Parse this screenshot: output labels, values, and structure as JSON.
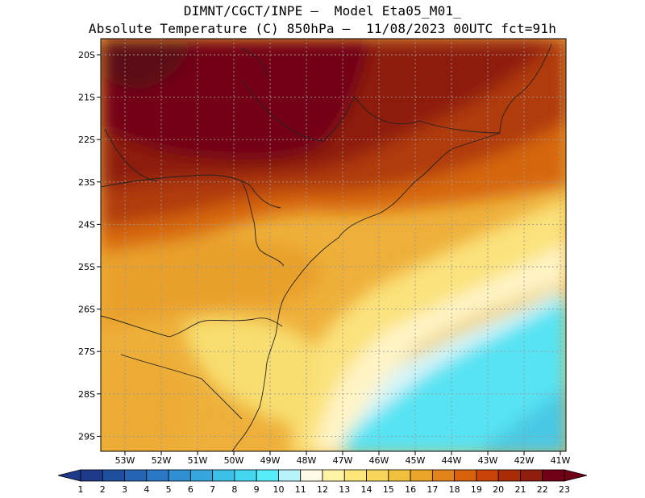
{
  "title": {
    "line1": "DIMNT/CGCT/INPE –  Model Eta05_M01_",
    "line2": "Absolute Temperature (C) 850hPa –  11/08/2023 00UTC fct=91h"
  },
  "axes": {
    "lat_labels": [
      "20S",
      "21S",
      "22S",
      "23S",
      "24S",
      "25S",
      "26S",
      "27S",
      "28S",
      "29S"
    ],
    "lon_labels": [
      "53W",
      "52W",
      "51W",
      "50W",
      "49W",
      "48W",
      "47W",
      "46W",
      "45W",
      "44W",
      "43W",
      "42W",
      "41W"
    ]
  },
  "colorbar": {
    "labels": [
      "1",
      "2",
      "3",
      "4",
      "5",
      "6",
      "7",
      "8",
      "9",
      "10",
      "11",
      "12",
      "13",
      "14",
      "15",
      "16",
      "17",
      "18",
      "19",
      "20",
      "21",
      "22",
      "23"
    ],
    "colors": [
      "#1f3a8a",
      "#1f4e9f",
      "#2563b4",
      "#2a78c6",
      "#2f8fd2",
      "#35a6de",
      "#3cbfe8",
      "#45d6f0",
      "#57ecf8",
      "#b8f2fb",
      "#fffbe6",
      "#fff3a6",
      "#fde77a",
      "#f7d558",
      "#f1c13e",
      "#eaa52a",
      "#e28319",
      "#d8610c",
      "#c84308",
      "#a92c07",
      "#8f1e0e",
      "#700016"
    ]
  }
}
